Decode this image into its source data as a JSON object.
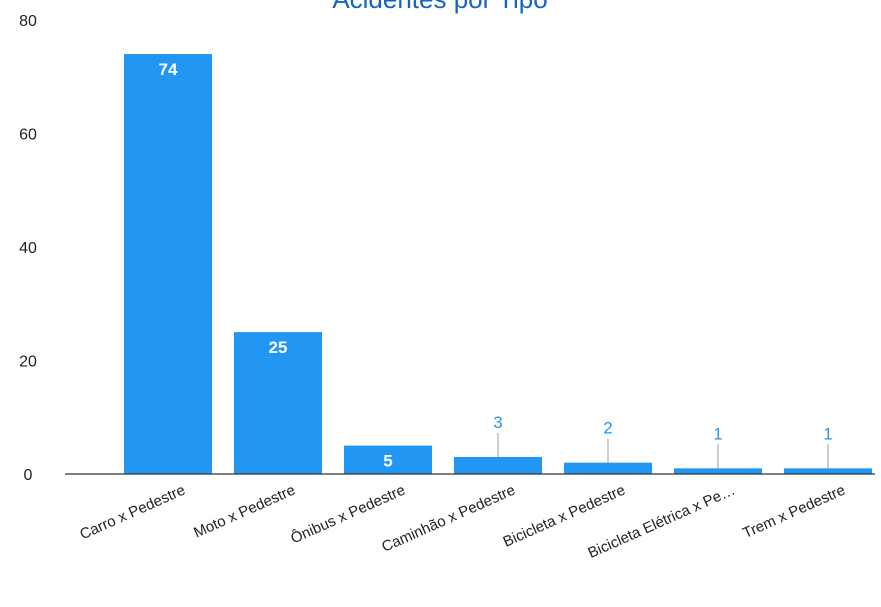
{
  "chart_data": {
    "type": "bar",
    "title": "Acidentes por Tipo",
    "categories": [
      "Carro x Pedestre",
      "Moto x Pedestre",
      "Ônibus x Pedestre",
      "Caminhão x Pedestre",
      "Bicicleta x Pedestre",
      "Bicicleta Elétrica x Pe…",
      "Trem x Pedestre"
    ],
    "values": [
      74,
      25,
      5,
      3,
      2,
      1,
      1
    ],
    "data_labels": [
      "74",
      "25",
      "5",
      "3",
      "2",
      "1",
      "1"
    ],
    "y_ticks": [
      "0",
      "20",
      "40",
      "60",
      "80"
    ],
    "ylim": [
      0,
      80
    ],
    "grid": false,
    "legend": "none",
    "colors": {
      "bar": "#2196f3",
      "title": "#1565c0",
      "label_outside": "#2196f3",
      "label_inside": "#ffffff",
      "axis": "#333333"
    }
  }
}
